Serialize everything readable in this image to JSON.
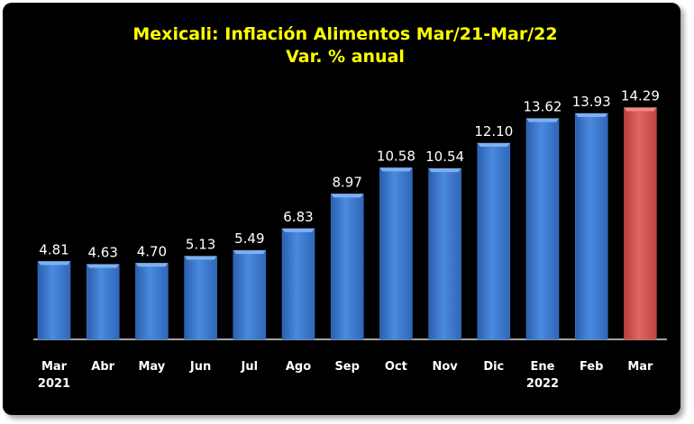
{
  "chart_data": {
    "type": "bar",
    "title": "Mexicali: Inflación Alimentos Mar/21-Mar/22",
    "subtitle": "Var. % anual",
    "categories": [
      "Mar\n2021",
      "Abr",
      "May",
      "Jun",
      "Jul",
      "Ago",
      "Sep",
      "Oct",
      "Nov",
      "Dic",
      "Ene\n2022",
      "Feb",
      "Mar"
    ],
    "values": [
      4.81,
      4.63,
      4.7,
      5.13,
      5.49,
      6.83,
      8.97,
      10.58,
      10.54,
      12.1,
      13.62,
      13.93,
      14.29
    ],
    "value_labels": [
      "4.81",
      "4.63",
      "4.70",
      "5.13",
      "5.49",
      "6.83",
      "8.97",
      "10.58",
      "10.54",
      "12.10",
      "13.62",
      "13.93",
      "14.29"
    ],
    "ylim": [
      0,
      16.5
    ],
    "grid": false,
    "colors": {
      "default_bar": "#3f7fd4",
      "highlight_bar": "#d9534f",
      "background": "#000000",
      "title": "#ffff00",
      "labels": "#ffffff"
    },
    "highlight_index": 12
  }
}
